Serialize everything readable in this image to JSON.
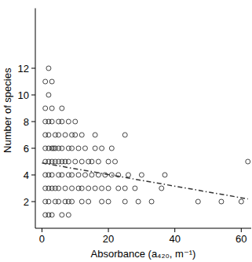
{
  "chart_data": {
    "type": "scatter",
    "x_label": "Absorbance (a₄₂₀, m⁻¹)",
    "y_label": "Number of species",
    "x": [
      2,
      1,
      3,
      2,
      1,
      3,
      6,
      1,
      2,
      3,
      5,
      6,
      8,
      10,
      1,
      2,
      4,
      5,
      7,
      9,
      10,
      12,
      16,
      25,
      1,
      2,
      3,
      3.5,
      4,
      5,
      6,
      8,
      9,
      11,
      13,
      16,
      18,
      21,
      1,
      2,
      3,
      4,
      5,
      6,
      7,
      8,
      10,
      12,
      14,
      15,
      17,
      20,
      22,
      62,
      1,
      2,
      3,
      5,
      6,
      8,
      9,
      11,
      13,
      15,
      17,
      19,
      21,
      23,
      26,
      30,
      37,
      1,
      2,
      3,
      4,
      5,
      7,
      9,
      11,
      12,
      14,
      16,
      18,
      20,
      23,
      25,
      28,
      36,
      1,
      2,
      4,
      5,
      7,
      8,
      9,
      12,
      14,
      18,
      20,
      25,
      29,
      33,
      47,
      54,
      60,
      1,
      2,
      3,
      6,
      8
    ],
    "values": [
      12,
      11,
      11,
      10,
      9,
      9,
      9,
      8,
      8,
      8,
      8,
      8,
      8,
      8,
      7,
      7,
      7,
      7,
      7,
      7,
      7,
      7,
      7,
      7,
      6,
      6,
      6,
      6,
      6,
      6,
      6,
      6,
      6,
      6,
      6,
      6,
      6,
      6,
      5,
      5,
      5,
      5,
      5,
      5,
      5,
      5,
      5,
      5,
      5,
      5,
      5,
      5,
      5,
      5,
      4,
      4,
      4,
      4,
      4,
      4,
      4,
      4,
      4,
      4,
      4,
      4,
      4,
      4,
      4,
      4,
      4,
      3,
      3,
      3,
      3,
      3,
      3,
      3,
      3,
      3,
      3,
      3,
      3,
      3,
      3,
      3,
      3,
      3,
      2,
      2,
      2,
      2,
      2,
      2,
      2,
      2,
      2,
      2,
      2,
      2,
      2,
      2,
      2,
      2,
      2,
      1,
      1,
      1,
      1,
      1
    ],
    "marker": "open-circle",
    "color": "#333333",
    "trend": {
      "x": [
        0,
        62
      ],
      "values": [
        4.9,
        2.2
      ],
      "line_style": "dash-dot"
    },
    "xlim": [
      -2,
      63
    ],
    "xticks": [
      0,
      20,
      40,
      60
    ],
    "ylim": [
      0,
      16.5
    ],
    "yticks": [
      2,
      4,
      6,
      8,
      10,
      12
    ],
    "grid": false
  }
}
